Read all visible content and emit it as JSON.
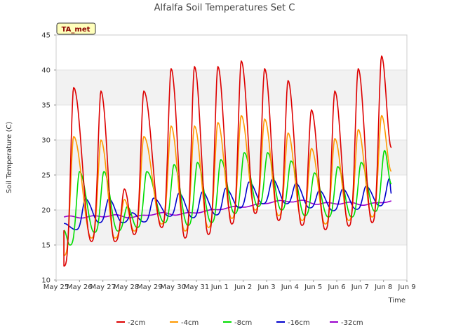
{
  "chart_data": {
    "type": "line",
    "title": "Alfalfa Soil Temperatures Set C",
    "xlabel": "Time",
    "ylabel": "Soil Temperature (C)",
    "badge": "TA_met",
    "ylim": [
      10,
      45
    ],
    "xlim": [
      "2024-05-25",
      "2024-06-09"
    ],
    "x_ticks": [
      "May 25",
      "May 26",
      "May 27",
      "May 28",
      "May 29",
      "May 30",
      "May 31",
      "Jun 1",
      "Jun 2",
      "Jun 3",
      "Jun 4",
      "Jun 5",
      "Jun 6",
      "Jun 7",
      "Jun 8",
      "Jun 9"
    ],
    "y_ticks": [
      10,
      15,
      20,
      25,
      30,
      35,
      40,
      45
    ],
    "grid": true,
    "background_bands": true,
    "legend_position": "bottom",
    "x_start": "2024-05-25 08:00",
    "x_end": "2024-06-08 08:00",
    "series": [
      {
        "name": "-2cm",
        "color": "#dd0000",
        "peak_dates": [
          "2024-05-25 18:00",
          "2024-05-26 22:00",
          "2024-05-27 22:00",
          "2024-05-28 18:00",
          "2024-05-29 22:00",
          "2024-05-30 22:00",
          "2024-05-31 22:00",
          "2024-06-01 22:00",
          "2024-06-02 22:00",
          "2024-06-03 22:00",
          "2024-06-04 22:00",
          "2024-06-05 22:00",
          "2024-06-06 22:00",
          "2024-06-07 22:00"
        ],
        "peaks": [
          37.5,
          37.0,
          23.0,
          37.0,
          40.2,
          40.5,
          40.5,
          41.3,
          40.2,
          38.5,
          34.3,
          37.0,
          40.2,
          42.0
        ],
        "minimums": [
          12.0,
          15.5,
          15.5,
          16.5,
          17.5,
          16.0,
          16.5,
          18.0,
          19.5,
          18.5,
          17.8,
          17.2,
          17.7,
          18.2
        ]
      },
      {
        "name": "-4cm",
        "color": "#ff9900",
        "peak_dates": [
          "2024-05-25 18:00",
          "2024-05-26 22:00",
          "2024-05-27 22:00",
          "2024-05-28 18:00",
          "2024-05-29 22:00",
          "2024-05-30 22:00",
          "2024-05-31 22:00",
          "2024-06-01 22:00",
          "2024-06-02 22:00",
          "2024-06-03 22:00",
          "2024-06-04 22:00",
          "2024-06-05 22:00",
          "2024-06-06 22:00",
          "2024-06-07 22:00"
        ],
        "peaks": [
          30.5,
          30.0,
          21.5,
          30.5,
          32.0,
          32.0,
          32.5,
          33.5,
          33.0,
          31.0,
          28.8,
          30.2,
          31.5,
          33.5
        ],
        "minimums": [
          13.5,
          16.0,
          16.0,
          17.0,
          18.0,
          17.0,
          17.5,
          18.8,
          20.0,
          19.2,
          18.5,
          18.0,
          18.5,
          19.0
        ]
      },
      {
        "name": "-8cm",
        "color": "#00dd00",
        "peak_dates": [
          "2024-05-26 00:00",
          "2024-05-27 01:00",
          "2024-05-28 01:00",
          "2024-05-28 21:00",
          "2024-05-30 01:00",
          "2024-05-31 01:00",
          "2024-06-01 01:00",
          "2024-06-02 01:00",
          "2024-06-03 01:00",
          "2024-06-04 01:00",
          "2024-06-05 01:00",
          "2024-06-06 01:00",
          "2024-06-07 01:00",
          "2024-06-08 01:00"
        ],
        "peaks": [
          25.5,
          25.5,
          20.5,
          25.5,
          26.5,
          26.8,
          27.2,
          28.2,
          28.2,
          27.0,
          25.3,
          26.2,
          26.8,
          28.5
        ],
        "minimums": [
          15.0,
          16.8,
          17.0,
          17.5,
          18.2,
          17.8,
          18.2,
          19.5,
          20.5,
          20.0,
          19.2,
          19.0,
          19.0,
          19.8
        ]
      },
      {
        "name": "-16cm",
        "color": "#0000cc",
        "peak_dates": [
          "2024-05-26 06:00",
          "2024-05-27 06:00",
          "2024-05-28 06:00",
          "2024-05-29 04:00",
          "2024-05-30 06:00",
          "2024-05-31 06:00",
          "2024-06-01 06:00",
          "2024-06-02 06:00",
          "2024-06-03 06:00",
          "2024-06-04 06:00",
          "2024-06-05 06:00",
          "2024-06-06 06:00",
          "2024-06-07 06:00",
          "2024-06-08 06:00"
        ],
        "peaks": [
          21.6,
          21.6,
          19.6,
          21.7,
          22.4,
          22.6,
          23.1,
          24.0,
          24.4,
          23.8,
          22.8,
          23.0,
          23.4,
          24.5
        ],
        "minimums": [
          17.2,
          18.2,
          18.2,
          18.3,
          19.1,
          18.9,
          19.3,
          20.3,
          20.9,
          20.9,
          20.3,
          19.9,
          20.1,
          20.6
        ]
      },
      {
        "name": "-32cm",
        "color": "#9900cc",
        "values_at_days": [
          19.0,
          19.0,
          19.2,
          19.0,
          19.5,
          19.4,
          19.8,
          20.3,
          20.6,
          21.2,
          21.3,
          20.9,
          21.0,
          20.8,
          21.3
        ]
      }
    ]
  }
}
